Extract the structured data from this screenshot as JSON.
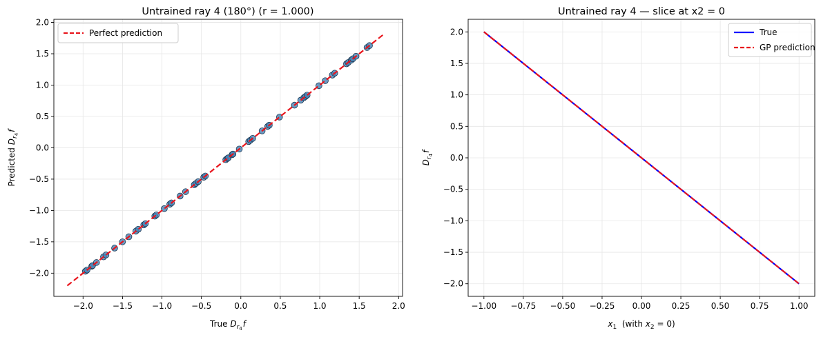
{
  "chart_data": [
    {
      "type": "scatter",
      "title": "Untrained ray 4 (180°)  (r = 1.000)",
      "xlabel": {
        "prefix": "True ",
        "symbol": "D",
        "sub": "r",
        "subsub": "4",
        "suffix": "f"
      },
      "ylabel": {
        "prefix": "Predicted ",
        "symbol": "D",
        "sub": "r",
        "subsub": "4",
        "suffix": "f"
      },
      "xlim": [
        -2.37,
        2.05
      ],
      "ylim": [
        -2.37,
        2.05
      ],
      "xticks": [
        -2.0,
        -1.5,
        -1.0,
        -0.5,
        0.0,
        0.5,
        1.0,
        1.5,
        2.0
      ],
      "yticks": [
        -2.0,
        -1.5,
        -1.0,
        -0.5,
        0.0,
        0.5,
        1.0,
        1.5,
        2.0
      ],
      "grid": true,
      "legend_position": "top-left",
      "colors": {
        "points": "#4682b4",
        "point_edge": "#1a3550",
        "line": "#e8141c"
      },
      "series": [
        {
          "name": "Perfect prediction",
          "kind": "line",
          "style": "dashed",
          "x": [
            -2.2,
            1.8
          ],
          "y": [
            -2.2,
            1.8
          ]
        },
        {
          "kind": "scatter",
          "x": [
            -1.97,
            -1.95,
            -1.89,
            -1.88,
            -1.83,
            -1.74,
            -1.71,
            -1.6,
            -1.5,
            -1.42,
            -1.33,
            -1.3,
            -1.23,
            -1.21,
            -1.09,
            -1.07,
            -0.97,
            -0.9,
            -0.88,
            -0.77,
            -0.7,
            -0.59,
            -0.57,
            -0.54,
            -0.47,
            -0.45,
            -0.19,
            -0.17,
            -0.16,
            -0.11,
            -0.1,
            -0.02,
            0.1,
            0.12,
            0.15,
            0.27,
            0.34,
            0.36,
            0.49,
            0.68,
            0.76,
            0.8,
            0.82,
            0.84,
            0.99,
            1.07,
            1.16,
            1.19,
            1.34,
            1.36,
            1.4,
            1.42,
            1.46,
            1.6,
            1.63
          ],
          "y": [
            -1.97,
            -1.95,
            -1.89,
            -1.88,
            -1.83,
            -1.74,
            -1.71,
            -1.6,
            -1.5,
            -1.42,
            -1.33,
            -1.3,
            -1.23,
            -1.21,
            -1.09,
            -1.07,
            -0.97,
            -0.9,
            -0.88,
            -0.77,
            -0.7,
            -0.59,
            -0.57,
            -0.54,
            -0.47,
            -0.45,
            -0.19,
            -0.17,
            -0.16,
            -0.11,
            -0.1,
            -0.02,
            0.1,
            0.12,
            0.15,
            0.27,
            0.34,
            0.36,
            0.49,
            0.68,
            0.76,
            0.8,
            0.82,
            0.84,
            0.99,
            1.07,
            1.16,
            1.19,
            1.34,
            1.36,
            1.4,
            1.42,
            1.46,
            1.6,
            1.63
          ]
        }
      ]
    },
    {
      "type": "line",
      "title": "Untrained ray 4 — slice at x2 = 0",
      "xlabel": {
        "symbol": "x",
        "sub": "1",
        "mid": "  (with ",
        "symbol2": "x",
        "sub2": "2",
        "eq": " = 0)"
      },
      "ylabel": {
        "symbol": "D",
        "sub": "r",
        "subsub": "4",
        "suffix": "f"
      },
      "xlim": [
        -1.1,
        1.1
      ],
      "ylim": [
        -2.2,
        2.2
      ],
      "xticks": [
        -1.0,
        -0.75,
        -0.5,
        -0.25,
        0.0,
        0.25,
        0.5,
        0.75,
        1.0
      ],
      "yticks": [
        -2.0,
        -1.5,
        -1.0,
        -0.5,
        0.0,
        0.5,
        1.0,
        1.5,
        2.0
      ],
      "grid": true,
      "legend_position": "top-right",
      "series": [
        {
          "name": "True",
          "color": "#0000ff",
          "style": "solid",
          "x": [
            -1.0,
            1.0
          ],
          "y": [
            2.0,
            -2.0
          ]
        },
        {
          "name": "GP prediction",
          "color": "#e8141c",
          "style": "dashed",
          "x": [
            -1.0,
            1.0
          ],
          "y": [
            2.0,
            -2.0
          ]
        }
      ]
    }
  ]
}
